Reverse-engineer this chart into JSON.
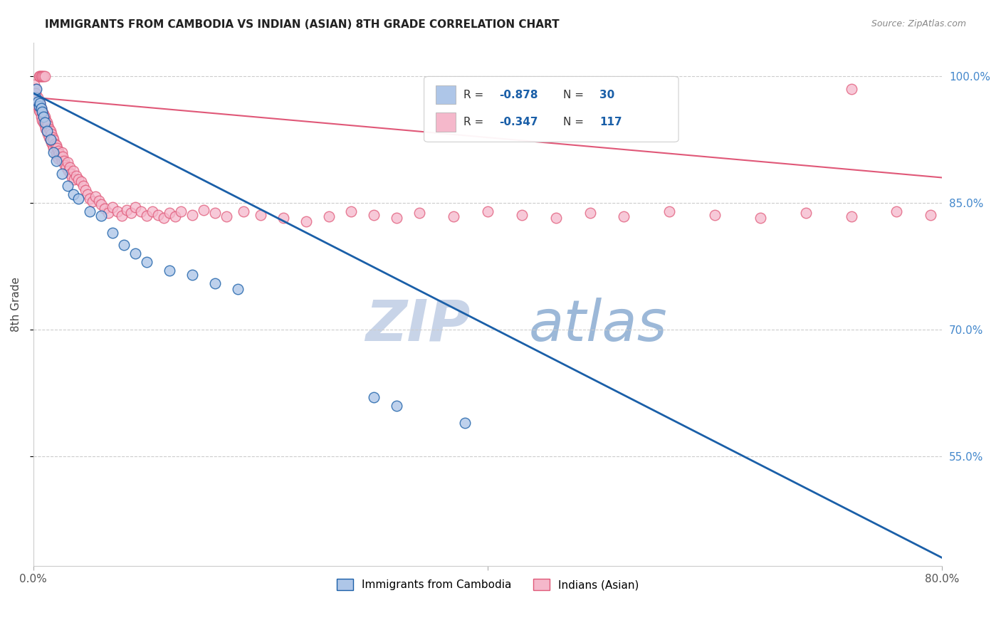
{
  "title": "IMMIGRANTS FROM CAMBODIA VS INDIAN (ASIAN) 8TH GRADE CORRELATION CHART",
  "source": "Source: ZipAtlas.com",
  "ylabel": "8th Grade",
  "r_cambodia": -0.878,
  "n_cambodia": 30,
  "r_indian": -0.347,
  "n_indian": 117,
  "x_min": 0.0,
  "x_max": 0.8,
  "y_min": 0.42,
  "y_max": 1.04,
  "yticks": [
    0.55,
    0.7,
    0.85,
    1.0
  ],
  "ytick_labels": [
    "55.0%",
    "70.0%",
    "85.0%",
    "100.0%"
  ],
  "color_cambodia": "#aec6e8",
  "color_cambodia_line": "#1a5fa8",
  "color_cambodia_edge": "#1a5fa8",
  "color_indian": "#f5b8cb",
  "color_indian_line": "#e05878",
  "color_indian_edge": "#e05878",
  "legend_text_color": "#1a5fa8",
  "watermark_zip_color": "#c8d4e8",
  "watermark_atlas_color": "#9cb8d8",
  "background": "#ffffff",
  "cam_trend_x0": 0.0,
  "cam_trend_y0": 0.98,
  "cam_trend_x1": 0.8,
  "cam_trend_y1": 0.43,
  "ind_trend_x0": 0.0,
  "ind_trend_y0": 0.975,
  "ind_trend_x1": 0.8,
  "ind_trend_y1": 0.88,
  "cambodia_x": [
    0.002,
    0.003,
    0.004,
    0.005,
    0.006,
    0.007,
    0.008,
    0.009,
    0.01,
    0.012,
    0.015,
    0.018,
    0.02,
    0.025,
    0.03,
    0.035,
    0.04,
    0.05,
    0.06,
    0.07,
    0.08,
    0.09,
    0.1,
    0.12,
    0.14,
    0.16,
    0.18,
    0.3,
    0.32,
    0.38
  ],
  "cambodia_y": [
    0.975,
    0.985,
    0.97,
    0.965,
    0.968,
    0.962,
    0.958,
    0.952,
    0.945,
    0.935,
    0.925,
    0.91,
    0.9,
    0.885,
    0.87,
    0.86,
    0.855,
    0.84,
    0.835,
    0.815,
    0.8,
    0.79,
    0.78,
    0.77,
    0.765,
    0.755,
    0.748,
    0.62,
    0.61,
    0.59
  ],
  "indian_x": [
    0.001,
    0.002,
    0.002,
    0.003,
    0.003,
    0.004,
    0.004,
    0.005,
    0.005,
    0.006,
    0.006,
    0.007,
    0.007,
    0.008,
    0.008,
    0.009,
    0.009,
    0.01,
    0.01,
    0.011,
    0.011,
    0.012,
    0.012,
    0.013,
    0.013,
    0.014,
    0.014,
    0.015,
    0.015,
    0.016,
    0.016,
    0.017,
    0.017,
    0.018,
    0.018,
    0.019,
    0.02,
    0.02,
    0.021,
    0.021,
    0.022,
    0.022,
    0.023,
    0.024,
    0.025,
    0.025,
    0.026,
    0.027,
    0.028,
    0.029,
    0.03,
    0.031,
    0.032,
    0.033,
    0.034,
    0.035,
    0.036,
    0.038,
    0.04,
    0.042,
    0.044,
    0.046,
    0.048,
    0.05,
    0.052,
    0.055,
    0.058,
    0.06,
    0.063,
    0.066,
    0.07,
    0.074,
    0.078,
    0.082,
    0.086,
    0.09,
    0.095,
    0.1,
    0.105,
    0.11,
    0.115,
    0.12,
    0.125,
    0.13,
    0.14,
    0.15,
    0.16,
    0.17,
    0.185,
    0.2,
    0.22,
    0.24,
    0.26,
    0.28,
    0.3,
    0.32,
    0.34,
    0.37,
    0.4,
    0.43,
    0.46,
    0.49,
    0.52,
    0.56,
    0.6,
    0.64,
    0.68,
    0.72,
    0.76,
    0.79,
    0.005,
    0.006,
    0.007,
    0.008,
    0.009,
    0.01,
    0.72
  ],
  "indian_y": [
    0.99,
    0.985,
    0.98,
    0.975,
    0.97,
    0.975,
    0.965,
    0.97,
    0.96,
    0.968,
    0.958,
    0.962,
    0.952,
    0.958,
    0.948,
    0.955,
    0.945,
    0.952,
    0.942,
    0.948,
    0.938,
    0.945,
    0.935,
    0.942,
    0.932,
    0.938,
    0.928,
    0.935,
    0.925,
    0.932,
    0.922,
    0.928,
    0.918,
    0.925,
    0.915,
    0.92,
    0.918,
    0.908,
    0.915,
    0.905,
    0.912,
    0.902,
    0.908,
    0.905,
    0.91,
    0.9,
    0.905,
    0.9,
    0.895,
    0.892,
    0.898,
    0.888,
    0.892,
    0.885,
    0.88,
    0.888,
    0.878,
    0.882,
    0.878,
    0.875,
    0.87,
    0.865,
    0.86,
    0.855,
    0.852,
    0.858,
    0.853,
    0.848,
    0.843,
    0.838,
    0.845,
    0.84,
    0.835,
    0.842,
    0.838,
    0.845,
    0.84,
    0.835,
    0.84,
    0.836,
    0.832,
    0.838,
    0.834,
    0.84,
    0.836,
    0.842,
    0.838,
    0.834,
    0.84,
    0.836,
    0.832,
    0.828,
    0.834,
    0.84,
    0.836,
    0.832,
    0.838,
    0.834,
    0.84,
    0.836,
    0.832,
    0.838,
    0.834,
    0.84,
    0.836,
    0.832,
    0.838,
    0.834,
    0.84,
    0.836,
    1.0,
    1.0,
    1.0,
    1.0,
    1.0,
    1.0,
    0.985
  ]
}
